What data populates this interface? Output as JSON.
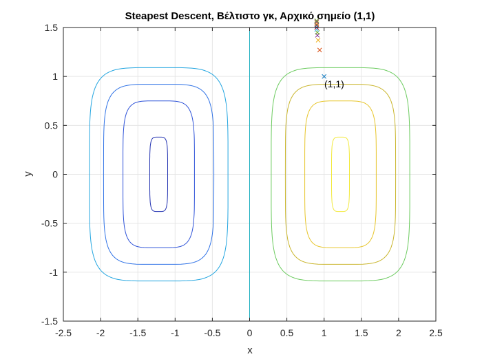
{
  "chart_data": {
    "type": "contour",
    "title": "Steapest Descent, Βέλτιστο γκ, Αρχικό σημείο (1,1)",
    "xlabel": "x",
    "ylabel": "y",
    "xlim": [
      -2.5,
      2.5
    ],
    "ylim": [
      -1.5,
      1.5
    ],
    "xticks": [
      "-2.5",
      "-2",
      "-1.5",
      "-1",
      "-0.5",
      "0",
      "0.5",
      "1",
      "1.5",
      "2",
      "2.5"
    ],
    "yticks": [
      "-1.5",
      "-1",
      "-0.5",
      "0",
      "0.5",
      "1",
      "1.5"
    ],
    "grid": true,
    "contours": [
      {
        "color": "#1f2fb0",
        "center_x": -1.22,
        "half_width": 0.12,
        "half_height": 0.38
      },
      {
        "color": "#2d52d8",
        "center_x": -1.22,
        "half_width": 0.48,
        "half_height": 0.75
      },
      {
        "color": "#2f72e6",
        "center_x": -1.22,
        "half_width": 0.74,
        "half_height": 0.92
      },
      {
        "color": "#22a5e0",
        "center_x": -1.22,
        "half_width": 0.93,
        "half_height": 1.09
      },
      {
        "color": "#1fb0c0",
        "center_x": 0.0,
        "half_width": 0.0,
        "half_height": 1.5
      },
      {
        "color": "#6ccb5f",
        "center_x": 1.22,
        "half_width": 0.93,
        "half_height": 1.09
      },
      {
        "color": "#c9b52b",
        "center_x": 1.22,
        "half_width": 0.74,
        "half_height": 0.92
      },
      {
        "color": "#e7c52a",
        "center_x": 1.22,
        "half_width": 0.48,
        "half_height": 0.75
      },
      {
        "color": "#f2e93a",
        "center_x": 1.22,
        "half_width": 0.12,
        "half_height": 0.38
      }
    ],
    "iterates": [
      {
        "x": 1.0,
        "y": 1.0,
        "color": "#0072bd"
      },
      {
        "x": 0.94,
        "y": 1.27,
        "color": "#d95319"
      },
      {
        "x": 0.92,
        "y": 1.37,
        "color": "#edb120"
      },
      {
        "x": 0.91,
        "y": 1.42,
        "color": "#7e2f8e"
      },
      {
        "x": 0.91,
        "y": 1.45,
        "color": "#77ac30"
      },
      {
        "x": 0.9,
        "y": 1.48,
        "color": "#4dbeee"
      },
      {
        "x": 0.9,
        "y": 1.5,
        "color": "#a2142f"
      },
      {
        "x": 0.9,
        "y": 1.52,
        "color": "#0072bd"
      },
      {
        "x": 0.9,
        "y": 1.53,
        "color": "#d95319"
      },
      {
        "x": 0.9,
        "y": 1.55,
        "color": "#edb120"
      },
      {
        "x": 0.9,
        "y": 1.56,
        "color": "#7e2f8e"
      },
      {
        "x": 0.9,
        "y": 1.57,
        "color": "#77ac30"
      }
    ],
    "annotation": {
      "text": "(1,1)",
      "x": 1.0,
      "y": 1.0
    }
  }
}
